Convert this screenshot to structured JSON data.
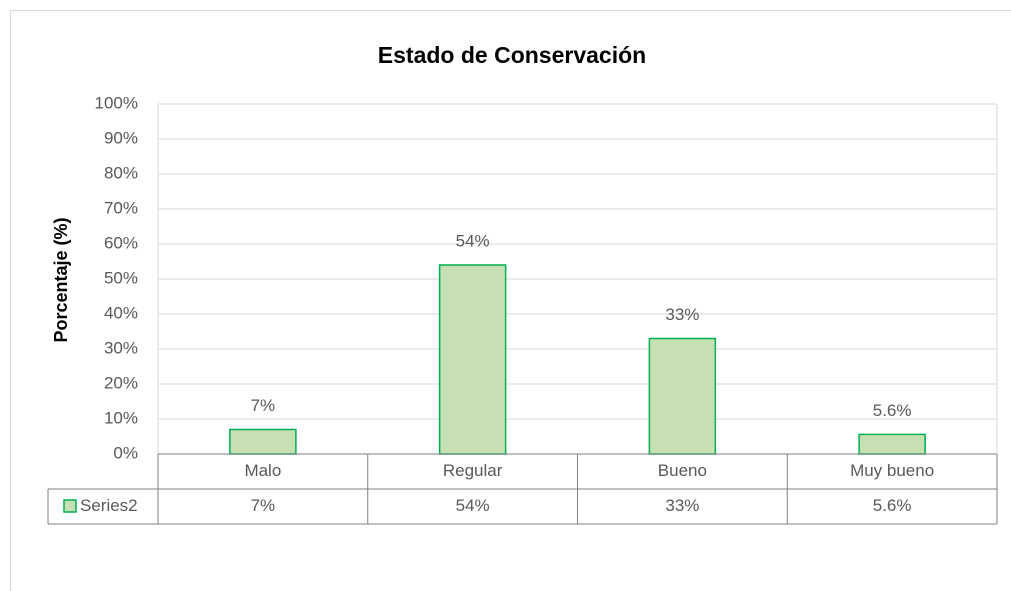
{
  "chart_data": {
    "type": "bar",
    "title": "Estado de Conservación",
    "y_label": "Porcentaje (%)",
    "categories": [
      "Malo",
      "Regular",
      "Bueno",
      "Muy bueno"
    ],
    "series": [
      {
        "name": "Series2",
        "color": "#c6e0b4",
        "edgecolor": "#00b050",
        "values": [
          7,
          54,
          33,
          5.6
        ],
        "value_labels": [
          "7%",
          "54%",
          "33%",
          "5.6%"
        ]
      }
    ],
    "ylim": [
      0,
      100
    ],
    "yticks": [
      {
        "value": 0,
        "label": "0%"
      },
      {
        "value": 10,
        "label": "10%"
      },
      {
        "value": 20,
        "label": "20%"
      },
      {
        "value": 30,
        "label": "30%"
      },
      {
        "value": 40,
        "label": "40%"
      },
      {
        "value": 50,
        "label": "50%"
      },
      {
        "value": 60,
        "label": "60%"
      },
      {
        "value": 70,
        "label": "70%"
      },
      {
        "value": 80,
        "label": "80%"
      },
      {
        "value": 90,
        "label": "90%"
      },
      {
        "value": 100,
        "label": "100%"
      }
    ],
    "grid": true
  }
}
